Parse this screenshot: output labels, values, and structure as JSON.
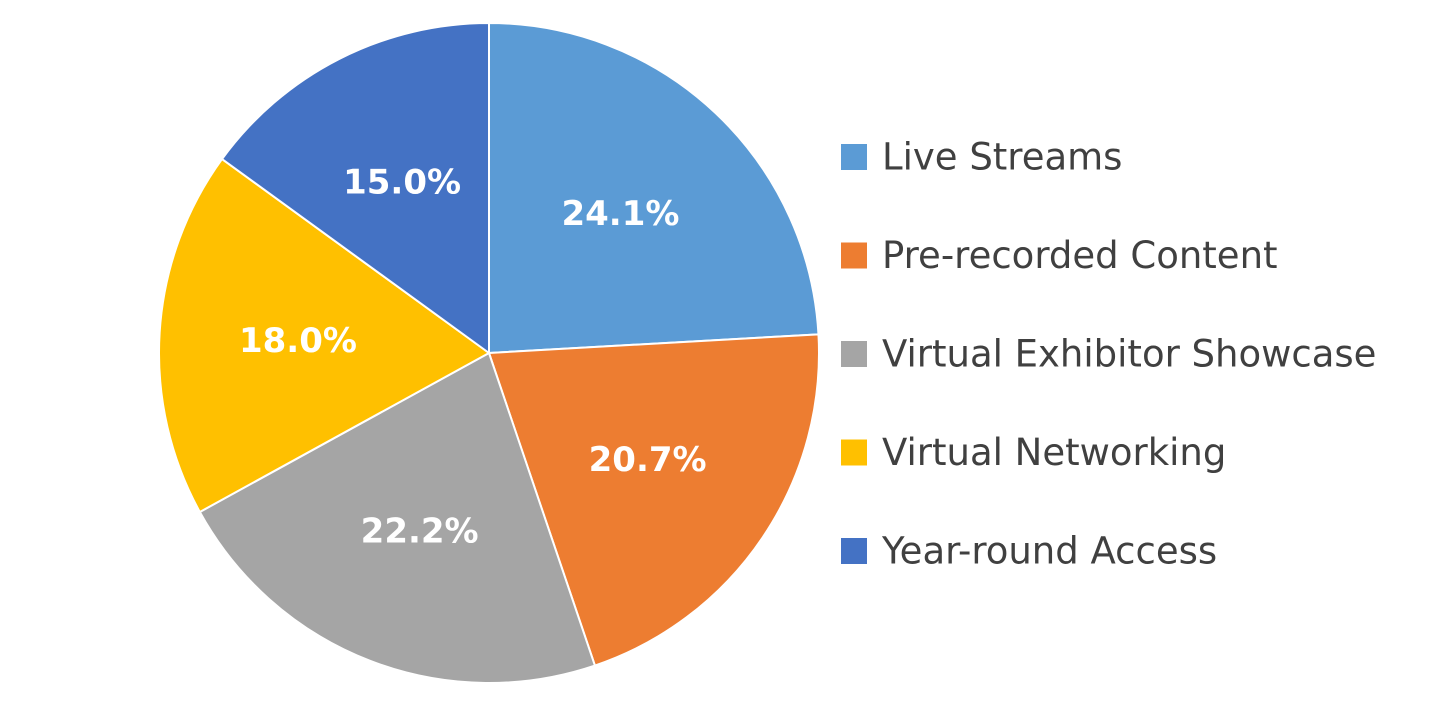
{
  "chart_data": {
    "type": "pie",
    "title": "",
    "slices": [
      {
        "label": "Live Streams",
        "value": 24.1,
        "display": "24.1%",
        "color": "#5B9BD5"
      },
      {
        "label": "Pre-recorded Content",
        "value": 20.7,
        "display": "20.7%",
        "color": "#ED7D31"
      },
      {
        "label": "Virtual Exhibitor Showcase",
        "value": 22.2,
        "display": "22.2%",
        "color": "#A5A5A5"
      },
      {
        "label": "Virtual Networking",
        "value": 18.0,
        "display": "18.0%",
        "color": "#FFC000"
      },
      {
        "label": "Year-round Access",
        "value": 15.0,
        "display": "15.0%",
        "color": "#4472C4"
      }
    ],
    "start_angle": "12 o'clock",
    "direction": "clockwise",
    "legend_position": "right",
    "data_labels": "inside"
  }
}
